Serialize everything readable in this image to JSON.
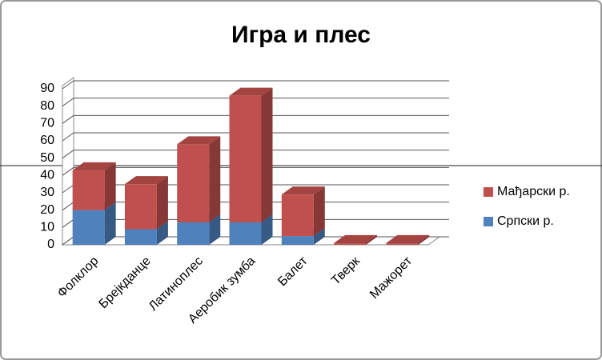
{
  "chart_data": {
    "type": "bar3d-stacked",
    "title": "Игра и плес",
    "categories": [
      "Фолклор",
      "Брејкданце",
      "Латиноплес",
      "Аеробик зумба",
      "Балет",
      "Тверк",
      "Мажорет"
    ],
    "series": [
      {
        "name": "Српски р.",
        "color": "#4f81bd",
        "values": [
          20,
          9,
          13,
          13,
          5,
          0,
          0
        ]
      },
      {
        "name": "Мађарски р.",
        "color": "#c0504d",
        "values": [
          23,
          26,
          45,
          73,
          24,
          1,
          1
        ]
      }
    ],
    "ylim": [
      0,
      90
    ],
    "yticks": [
      0,
      10,
      20,
      30,
      40,
      50,
      60,
      70,
      80,
      90
    ],
    "grid": true
  }
}
